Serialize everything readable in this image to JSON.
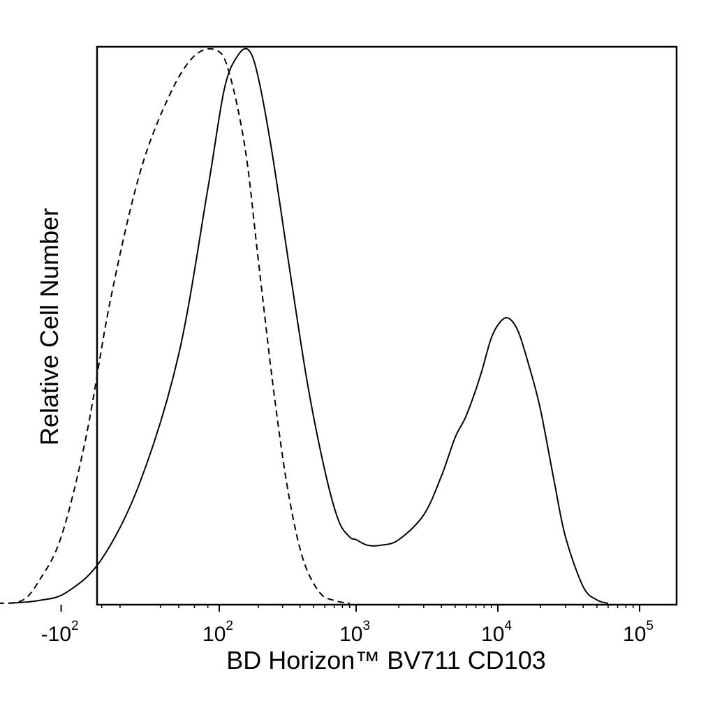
{
  "chart_data": {
    "type": "line",
    "title": "",
    "xlabel": "BD Horizon™ BV711 CD103",
    "ylabel": "Relative Cell Number",
    "x_scale": "biexponential",
    "x_ticks": [
      {
        "value": -100,
        "base": "-10",
        "exp": "2"
      },
      {
        "value": 100,
        "base": "10",
        "exp": "2"
      },
      {
        "value": 1000,
        "base": "10",
        "exp": "3"
      },
      {
        "value": 10000,
        "base": "10",
        "exp": "4"
      },
      {
        "value": 100000,
        "base": "10",
        "exp": "5"
      }
    ],
    "ylim": [
      0,
      100
    ],
    "grid": false,
    "legend": "none",
    "series": [
      {
        "style": "solid",
        "color": "#000000",
        "points": [
          [
            -250,
            0
          ],
          [
            -150,
            0.5
          ],
          [
            -90,
            2
          ],
          [
            -40,
            8
          ],
          [
            0,
            22
          ],
          [
            40,
            45
          ],
          [
            80,
            75
          ],
          [
            110,
            93
          ],
          [
            140,
            99
          ],
          [
            170,
            100
          ],
          [
            200,
            95
          ],
          [
            250,
            82
          ],
          [
            330,
            62
          ],
          [
            450,
            40
          ],
          [
            600,
            24
          ],
          [
            750,
            15
          ],
          [
            900,
            12
          ],
          [
            1000,
            11.5
          ],
          [
            1200,
            10.5
          ],
          [
            1500,
            10.5
          ],
          [
            2000,
            11.5
          ],
          [
            3000,
            16
          ],
          [
            4000,
            23
          ],
          [
            5000,
            30
          ],
          [
            6000,
            34
          ],
          [
            7500,
            41
          ],
          [
            9000,
            48
          ],
          [
            10500,
            51
          ],
          [
            12000,
            51.5
          ],
          [
            14000,
            49
          ],
          [
            17000,
            42
          ],
          [
            20000,
            35
          ],
          [
            25000,
            22
          ],
          [
            30000,
            12
          ],
          [
            40000,
            3
          ],
          [
            50000,
            0.6
          ],
          [
            60000,
            0
          ]
        ]
      },
      {
        "style": "dashed",
        "color": "#000000",
        "points": [
          [
            -300,
            0
          ],
          [
            -200,
            0.5
          ],
          [
            -150,
            4
          ],
          [
            -100,
            12
          ],
          [
            -60,
            30
          ],
          [
            -30,
            55
          ],
          [
            0,
            78
          ],
          [
            30,
            92
          ],
          [
            60,
            99
          ],
          [
            95,
            100
          ],
          [
            120,
            96
          ],
          [
            160,
            82
          ],
          [
            200,
            62
          ],
          [
            260,
            38
          ],
          [
            330,
            20
          ],
          [
            420,
            8
          ],
          [
            550,
            2
          ],
          [
            700,
            0.5
          ],
          [
            900,
            0
          ]
        ]
      }
    ]
  }
}
